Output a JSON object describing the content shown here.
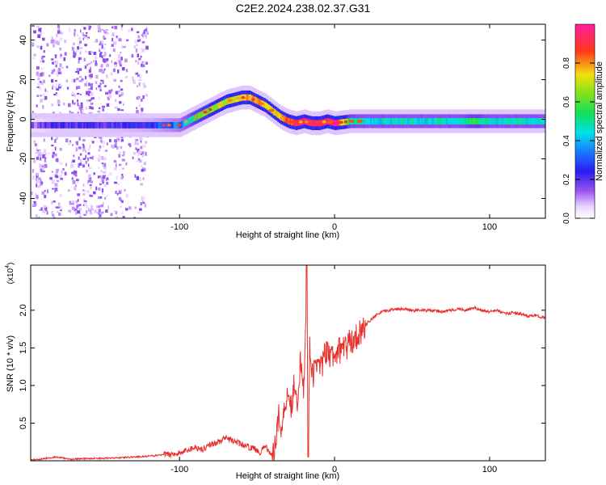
{
  "title": "C2E2.2024.238.02.37.G31",
  "chart_data": [
    {
      "type": "heatmap",
      "title": "C2E2.2024.238.02.37.G31",
      "xlabel": "Height of straight line (km)",
      "ylabel": "Frequency (Hz)",
      "xlim": [
        -196,
        136
      ],
      "ylim": [
        -50,
        48
      ],
      "x_ticks": [
        -100,
        0,
        100
      ],
      "y_ticks": [
        -40,
        -20,
        0,
        20,
        40
      ],
      "colorbar": {
        "label": "Normalized spectral amplitude",
        "ticks": [
          0.0,
          0.2,
          0.4,
          0.6,
          0.8
        ],
        "range": [
          0,
          1
        ],
        "colormap": "white-violet-blue-cyan-green-yellow-red-pink"
      },
      "ridge": {
        "description": "dominant frequency track",
        "x": [
          -196,
          -180,
          -160,
          -140,
          -120,
          -110,
          -100,
          -95,
          -90,
          -85,
          -80,
          -75,
          -70,
          -65,
          -60,
          -55,
          -50,
          -45,
          -40,
          -35,
          -30,
          -25,
          -20,
          -15,
          -10,
          -5,
          0,
          10,
          20,
          40,
          60,
          80,
          90,
          100,
          120,
          136
        ],
        "y": [
          -3,
          -3,
          -3,
          -3,
          -3,
          -3,
          -3,
          -1,
          1,
          3,
          5,
          7,
          9,
          10,
          11,
          11,
          9,
          7,
          4,
          1,
          -1,
          -2,
          -1,
          -2,
          -2,
          -1,
          -2,
          -1,
          -1,
          -1,
          -1,
          -1,
          -1,
          -1,
          -1,
          -1
        ],
        "amplitude": [
          0.15,
          0.2,
          0.2,
          0.22,
          0.25,
          0.3,
          0.35,
          0.45,
          0.55,
          0.6,
          0.65,
          0.7,
          0.72,
          0.7,
          0.75,
          0.8,
          0.82,
          0.78,
          0.7,
          0.8,
          0.85,
          0.9,
          0.95,
          0.92,
          0.95,
          0.98,
          0.95,
          0.5,
          0.45,
          0.45,
          0.45,
          0.45,
          0.55,
          0.45,
          0.45,
          0.45
        ]
      }
    },
    {
      "type": "line",
      "xlabel": "Height of straight line (km)",
      "ylabel": "SNR (10 * v/v)",
      "y_multiplier": "(x10",
      "y_multiplier_exp": "4",
      "xlim": [
        -196,
        136
      ],
      "ylim": [
        0,
        2.6
      ],
      "x_ticks": [
        -100,
        0,
        100
      ],
      "y_ticks": [
        0.5,
        1.0,
        1.5,
        2.0
      ],
      "color": "#e8302b",
      "series": [
        {
          "x": [
            -196,
            -190,
            -180,
            -170,
            -160,
            -150,
            -140,
            -130,
            -120,
            -110,
            -100,
            -95,
            -90,
            -85,
            -80,
            -75,
            -70,
            -65,
            -60,
            -55,
            -50,
            -48,
            -45,
            -42,
            -40,
            -38,
            -36,
            -34,
            -32,
            -30,
            -28,
            -26,
            -24,
            -22,
            -20,
            -19,
            -18,
            -17,
            -16,
            -15,
            -14,
            -12,
            -10,
            -8,
            -6,
            -4,
            -2,
            0,
            2,
            4,
            6,
            8,
            10,
            12,
            14,
            16,
            18,
            20,
            22,
            25,
            28,
            31,
            35,
            40,
            45,
            50,
            60,
            70,
            80,
            85,
            90,
            95,
            100,
            105,
            110,
            115,
            120,
            125,
            130,
            136
          ],
          "y": [
            0.01,
            0.02,
            0.05,
            0.02,
            0.03,
            0.03,
            0.04,
            0.05,
            0.06,
            0.08,
            0.1,
            0.14,
            0.18,
            0.15,
            0.22,
            0.25,
            0.3,
            0.26,
            0.22,
            0.18,
            0.15,
            0.1,
            0.2,
            0.12,
            0.05,
            0.3,
            0.6,
            0.4,
            0.75,
            0.95,
            0.7,
            1.05,
            0.8,
            1.3,
            0.9,
            1.45,
            2.6,
            0.1,
            1.6,
            1.2,
            1.1,
            1.3,
            1.35,
            1.25,
            1.45,
            1.4,
            1.4,
            1.35,
            1.5,
            1.45,
            1.55,
            1.5,
            1.6,
            1.6,
            1.65,
            1.7,
            1.75,
            1.8,
            1.85,
            1.9,
            1.95,
            1.98,
            2.0,
            2.02,
            2.02,
            2.0,
            2.0,
            1.98,
            2.02,
            2.0,
            2.03,
            2.0,
            1.98,
            2.0,
            1.95,
            1.97,
            1.95,
            1.92,
            1.93,
            1.9
          ]
        }
      ]
    }
  ]
}
